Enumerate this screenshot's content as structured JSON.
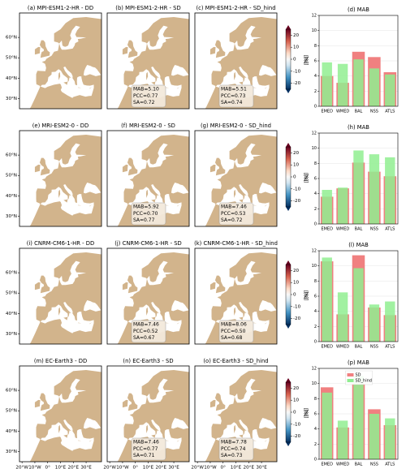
{
  "maps": [
    {
      "title": "(a) MPI-ESM1-2-HR - DD",
      "stats": null
    },
    {
      "title": "(b) MPI-ESM1-2-HR - SD",
      "stats": [
        "MAB=5.10",
        "PCC=0.77",
        "SA=0.72"
      ]
    },
    {
      "title": "(c) MPI-ESM1-2-HR - SD_hind",
      "stats": [
        "MAB=5.51",
        "PCC=0.73",
        "SA=0.74"
      ]
    },
    {
      "title": "(e) MRI-ESM2-0 - DD",
      "stats": null
    },
    {
      "title": "(f) MRI-ESM2-0 - SD",
      "stats": [
        "MAB=5.92",
        "PCC=0.70",
        "SA=0.77"
      ]
    },
    {
      "title": "(g) MRI-ESM2-0 - SD_hind",
      "stats": [
        "MAB=7.46",
        "PCC=0.53",
        "SA=0.72"
      ]
    },
    {
      "title": "(i) CNRM-CM6-1-HR - DD",
      "stats": null
    },
    {
      "title": "(j) CNRM-CM6-1-HR - SD",
      "stats": [
        "MAB=7.46",
        "PCC=0.52",
        "SA=0.67"
      ]
    },
    {
      "title": "(k) CNRM-CM6-1-HR - SD_hind",
      "stats": [
        "MAB=8.06",
        "PCC=0.50",
        "SA=0.68"
      ]
    },
    {
      "title": "(m) EC-Earth3 - DD",
      "stats": null
    },
    {
      "title": "(n) EC-Earth3 - SD",
      "stats": [
        "MAB=7.46",
        "PCC=0.77",
        "SA=0.71"
      ]
    },
    {
      "title": "(o) EC-Earth3 - SD_hind",
      "stats": [
        "MAB=7.78",
        "PCC=0.74",
        "SA=0.73"
      ]
    }
  ],
  "lat_ticks": [
    {
      "value": 60,
      "label": "60°N"
    },
    {
      "value": 50,
      "label": "50°N"
    },
    {
      "value": 40,
      "label": "40°N"
    },
    {
      "value": 30,
      "label": "30°N"
    }
  ],
  "lon_ticks": [
    {
      "value": -20,
      "label": "20°W"
    },
    {
      "value": -10,
      "label": "10°W"
    },
    {
      "value": 0,
      "label": "0°"
    },
    {
      "value": 10,
      "label": "10°E"
    },
    {
      "value": 20,
      "label": "20°E"
    },
    {
      "value": 30,
      "label": "30°E"
    }
  ],
  "colorbar": {
    "ticks": [
      20,
      10,
      0,
      -10,
      -20
    ],
    "range": [
      -25,
      25
    ],
    "label": "[%]"
  },
  "chart_data": [
    {
      "type": "bar",
      "title": "(d) MAB",
      "ylabel": "[%]",
      "categories": [
        "EMED",
        "WMED",
        "BAL",
        "NSS",
        "ATLS"
      ],
      "series": [
        {
          "name": "SD",
          "color": "#f08080",
          "values": [
            4.0,
            3.1,
            7.2,
            6.5,
            4.5
          ]
        },
        {
          "name": "SD_hind",
          "color": "#90ee90",
          "values": [
            5.8,
            5.6,
            6.2,
            5.0,
            4.2
          ]
        }
      ],
      "ylim": [
        0,
        12
      ],
      "yticks": [
        0,
        2,
        4,
        6,
        8,
        10,
        12
      ],
      "grid": true
    },
    {
      "type": "bar",
      "title": "(h) MAB",
      "ylabel": "[%]",
      "categories": [
        "EMED",
        "WMED",
        "BAL",
        "NSS",
        "ATLS"
      ],
      "series": [
        {
          "name": "SD",
          "color": "#f08080",
          "values": [
            3.6,
            4.7,
            8.1,
            6.9,
            6.3
          ]
        },
        {
          "name": "SD_hind",
          "color": "#90ee90",
          "values": [
            4.5,
            4.8,
            9.7,
            9.2,
            8.8
          ]
        }
      ],
      "ylim": [
        0,
        12
      ],
      "yticks": [
        0,
        2,
        4,
        6,
        8,
        10,
        12
      ],
      "grid": true
    },
    {
      "type": "bar",
      "title": "(l) MAB",
      "ylabel": "[%]",
      "categories": [
        "EMED",
        "WMED",
        "BAL",
        "NSS",
        "ATLS"
      ],
      "series": [
        {
          "name": "SD",
          "color": "#f08080",
          "values": [
            10.6,
            3.6,
            11.4,
            4.5,
            3.5
          ]
        },
        {
          "name": "SD_hind",
          "color": "#90ee90",
          "values": [
            11.1,
            6.5,
            9.7,
            4.9,
            5.3
          ]
        }
      ],
      "ylim": [
        0,
        12
      ],
      "yticks": [
        0,
        2,
        4,
        6,
        8,
        10,
        12
      ],
      "grid": true
    },
    {
      "type": "bar",
      "title": "(p) MAB",
      "ylabel": "[%]",
      "categories": [
        "EMED",
        "WMED",
        "BAL",
        "NSS",
        "ATLS"
      ],
      "series": [
        {
          "name": "SD",
          "color": "#f08080",
          "values": [
            9.5,
            4.2,
            10.0,
            6.6,
            4.5
          ]
        },
        {
          "name": "SD_hind",
          "color": "#90ee90",
          "values": [
            8.8,
            5.1,
            11.0,
            6.0,
            5.4
          ]
        }
      ],
      "ylim": [
        0,
        12
      ],
      "yticks": [
        0,
        2,
        4,
        6,
        8,
        10,
        12
      ],
      "grid": true,
      "legend": "upper center"
    }
  ]
}
